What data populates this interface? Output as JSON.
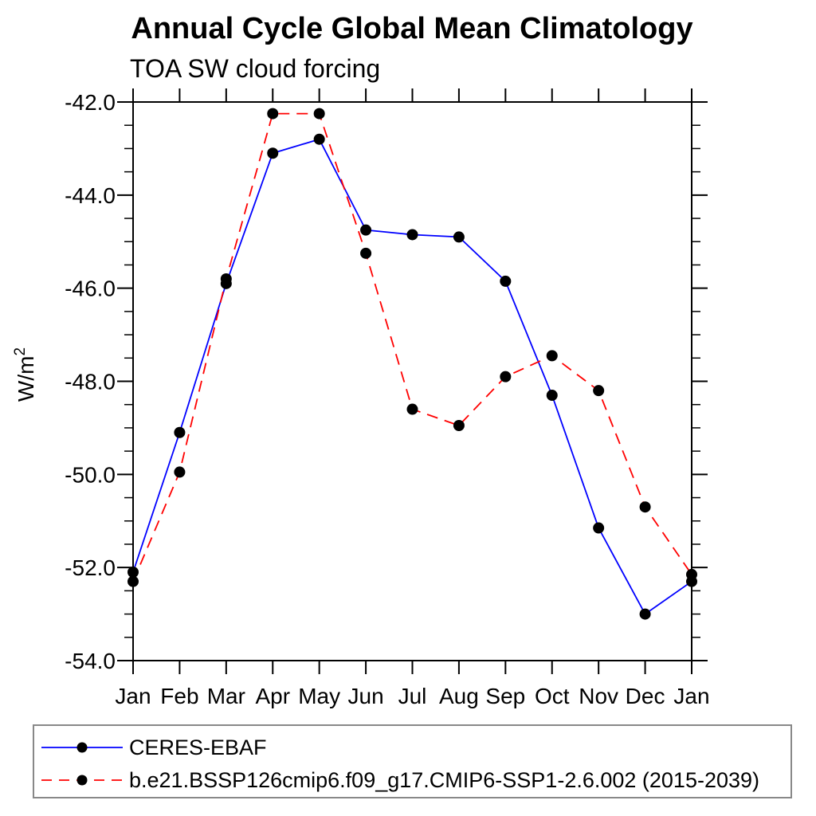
{
  "page": {
    "background": "#ffffff"
  },
  "chart_data": {
    "type": "line",
    "title": "Annual Cycle Global Mean Climatology",
    "subtitle": "TOA SW cloud forcing",
    "ylabel_base": "W/m",
    "ylabel_exp": "2",
    "categories": [
      "Jan",
      "Feb",
      "Mar",
      "Apr",
      "May",
      "Jun",
      "Jul",
      "Aug",
      "Sep",
      "Oct",
      "Nov",
      "Dec",
      "Jan"
    ],
    "ylim": [
      -54.0,
      -42.0
    ],
    "ytick_major_step": 2.0,
    "ytick_minor_step": 0.5,
    "ytick_labels": [
      "-42.0",
      "-44.0",
      "-46.0",
      "-48.0",
      "-50.0",
      "-52.0",
      "-54.0"
    ],
    "grid": false,
    "legend_position": "bottom",
    "axis_color": "#000000",
    "marker_shape": "filled-circle",
    "series": [
      {
        "name": "CERES-EBAF",
        "color": "#0000ff",
        "line_style": "solid",
        "marker_color": "#000000",
        "values": [
          -52.1,
          -49.1,
          -45.9,
          -43.1,
          -42.8,
          -44.75,
          -44.85,
          -44.9,
          -45.85,
          -48.3,
          -51.15,
          -53.0,
          -52.3
        ]
      },
      {
        "name": "b.e21.BSSP126cmip6.f09_g17.CMIP6-SSP1-2.6.002 (2015-2039)",
        "color": "#ff0000",
        "line_style": "dashed",
        "marker_color": "#000000",
        "values": [
          -52.3,
          -49.95,
          -45.8,
          -42.25,
          -42.25,
          -45.25,
          -48.6,
          -48.95,
          -47.9,
          -47.45,
          -48.2,
          -50.7,
          -52.15
        ]
      }
    ]
  }
}
